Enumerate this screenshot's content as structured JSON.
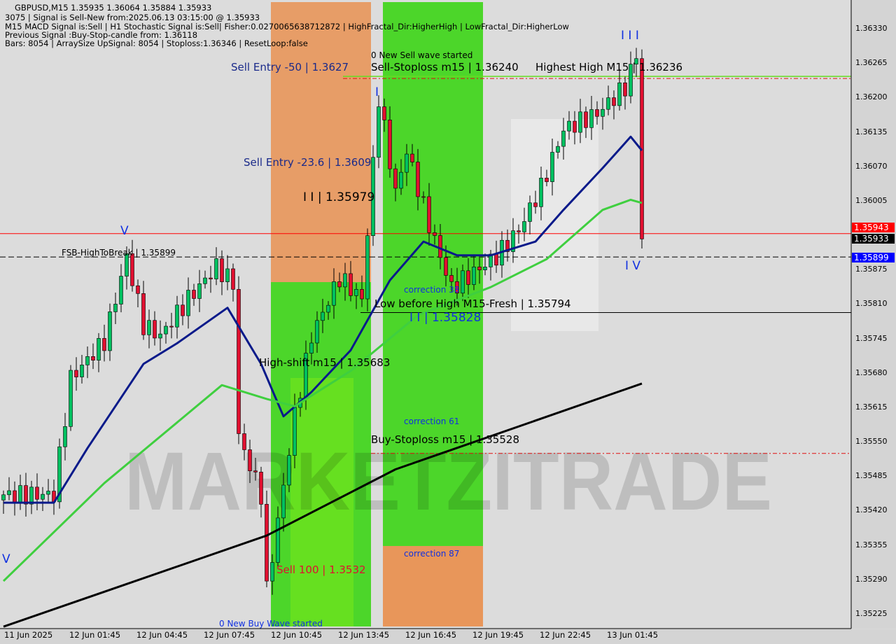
{
  "header": {
    "symbol_line": "GBPUSD,M15  1.35935 1.36064 1.35884 1.35933",
    "signal_line": "3075 | Signal is Sell-New from:2025.06.13 03:15:00 @ 1.35933",
    "indicators_line": "M15 MACD Signal is:Sell | H1 Stochastic Signal is:Sell| Fisher:0.0270065638712872 | HighFractal_Dir:HigherHigh | LowFractal_Dir:HigherLow",
    "previous_line": "Previous Signal :Buy-Stop-candle from: 1.36118",
    "bars_line": "Bars: 8054 | ArraySize UpSignal: 8054 | Stoploss:1.36346 | ResetLoop:false"
  },
  "annotations": {
    "new_sell_wave": "0 New Sell wave started",
    "sell_entry_50": "Sell Entry -50 | 1.3627",
    "sell_stoploss": "Sell-Stoploss m15 | 1.36240",
    "highest_high": "Highest High M15 | 1.36236",
    "sell_entry_23": "Sell Entry -23.6 | 1.3609",
    "ii_high": "I I | 1.35979",
    "fsb": "FSB-HighToBreak | 1.35899",
    "wave_v_top": "V",
    "wave_v_left": "V",
    "wave_iv": "I V",
    "wave_iii": "I I I",
    "wave_i": "I",
    "correction_38": "correction 38",
    "low_before_high": "Low before High   M15-Fresh | 1.35794",
    "ii_low": "I I | 1.35828",
    "high_shift": "High-shift m15 | 1.35683",
    "correction_61": "correction 61",
    "buy_stoploss": "Buy-Stoploss m15 | 1.35528",
    "correction_87": "correction 87",
    "sell_100": "Sell 100 | 1.3532",
    "new_buy_wave": "0 New Buy Wave started",
    "watermark": "MARKETZITRADE"
  },
  "price_labels": {
    "red": "1.35943",
    "current": "1.35933",
    "fsb": "1.35899"
  },
  "colors": {
    "bull": "#00c060",
    "bear": "#e01030",
    "zone_orange": "#e8965a",
    "zone_green": "#4cd62a",
    "ma_fast": "#0a1a8a",
    "ma_mid": "#3fcf3f",
    "ma_slow": "#000000"
  },
  "chart_data": {
    "type": "candlestick",
    "title": "GBPUSD,M15",
    "ylim": [
      1.3519,
      1.364
    ],
    "y_ticks": [
      "1.36330",
      "1.36265",
      "1.36200",
      "1.36135",
      "1.36070",
      "1.36005",
      "1.35875",
      "1.35810",
      "1.35745",
      "1.35680",
      "1.35615",
      "1.35550",
      "1.35485",
      "1.35420",
      "1.35355",
      "1.35290",
      "1.35225"
    ],
    "x_ticks": [
      "11 Jun 2025",
      "12 Jun 01:45",
      "12 Jun 04:45",
      "12 Jun 07:45",
      "12 Jun 10:45",
      "12 Jun 13:45",
      "12 Jun 16:45",
      "12 Jun 19:45",
      "12 Jun 22:45",
      "13 Jun 01:45"
    ],
    "bar_minutes": 15,
    "close_path": [
      [
        "2025-06-11 22:45",
        1.3545
      ],
      [
        "2025-06-12 01:00",
        1.3545
      ],
      [
        "2025-06-12 01:45",
        1.3567
      ],
      [
        "2025-06-12 03:15",
        1.3574
      ],
      [
        "2025-06-12 04:15",
        1.359
      ],
      [
        "2025-06-12 05:00",
        1.3577
      ],
      [
        "2025-06-12 05:45",
        1.3575
      ],
      [
        "2025-06-12 07:00",
        1.3582
      ],
      [
        "2025-06-12 08:15",
        1.3588
      ],
      [
        "2025-06-12 09:00",
        1.3585
      ],
      [
        "2025-06-12 09:15",
        1.3556
      ],
      [
        "2025-06-12 10:15",
        1.3545
      ],
      [
        "2025-06-12 10:30",
        1.3527
      ],
      [
        "2025-06-12 11:00",
        1.354
      ],
      [
        "2025-06-12 11:45",
        1.356
      ],
      [
        "2025-06-12 12:30",
        1.3575
      ],
      [
        "2025-06-12 13:45",
        1.3586
      ],
      [
        "2025-06-12 14:45",
        1.3582
      ],
      [
        "2025-06-12 15:30",
        1.362
      ],
      [
        "2025-06-12 16:15",
        1.3602
      ],
      [
        "2025-06-12 16:45",
        1.361
      ],
      [
        "2025-06-12 17:45",
        1.3596
      ],
      [
        "2025-06-12 18:45",
        1.3584
      ],
      [
        "2025-06-12 20:45",
        1.359
      ],
      [
        "2025-06-12 21:45",
        1.3595
      ],
      [
        "2025-06-12 22:45",
        1.3603
      ],
      [
        "2025-06-12 23:45",
        1.3614
      ],
      [
        "2025-06-13 01:15",
        1.3617
      ],
      [
        "2025-06-13 02:30",
        1.3622
      ],
      [
        "2025-06-13 03:00",
        1.3628
      ],
      [
        "2025-06-13 03:15",
        1.35933
      ]
    ],
    "series": [
      {
        "color": "#0a1a8a",
        "values": [
          [
            "2025-06-11 22:45",
            1.35435
          ],
          [
            "2025-06-12 01:00",
            1.35435
          ],
          [
            "2025-06-12 02:30",
            1.35538
          ],
          [
            "2025-06-12 05:00",
            1.35697
          ],
          [
            "2025-06-12 06:30",
            1.35736
          ],
          [
            "2025-06-12 08:45",
            1.35803
          ],
          [
            "2025-06-12 10:15",
            1.35697
          ],
          [
            "2025-06-12 11:15",
            1.35598
          ],
          [
            "2025-06-12 12:30",
            1.35644
          ],
          [
            "2025-06-12 14:15",
            1.35723
          ],
          [
            "2025-06-12 16:00",
            1.35855
          ],
          [
            "2025-06-12 17:30",
            1.35928
          ],
          [
            "2025-06-12 19:00",
            1.35902
          ],
          [
            "2025-06-12 20:30",
            1.35902
          ],
          [
            "2025-06-12 22:30",
            1.35928
          ],
          [
            "2025-06-12 23:45",
            1.35988
          ],
          [
            "2025-06-13 01:30",
            1.36067
          ],
          [
            "2025-06-13 02:45",
            1.36126
          ],
          [
            "2025-06-13 03:15",
            1.361
          ]
        ]
      },
      {
        "color": "#3fcf3f",
        "values": [
          [
            "2025-06-11 22:45",
            1.35287
          ],
          [
            "2025-06-12 03:15",
            1.35472
          ],
          [
            "2025-06-12 08:30",
            1.35657
          ],
          [
            "2025-06-12 10:30",
            1.35631
          ],
          [
            "2025-06-12 11:45",
            1.35617
          ],
          [
            "2025-06-12 14:15",
            1.35684
          ],
          [
            "2025-06-12 17:15",
            1.35789
          ],
          [
            "2025-06-12 20:30",
            1.35842
          ],
          [
            "2025-06-12 23:00",
            1.35895
          ],
          [
            "2025-06-13 01:30",
            1.35988
          ],
          [
            "2025-06-13 02:45",
            1.36007
          ],
          [
            "2025-06-13 03:15",
            1.36001
          ]
        ]
      },
      {
        "color": "#000000",
        "values": [
          [
            "2025-06-11 22:45",
            1.35201
          ],
          [
            "2025-06-12 10:30",
            1.35373
          ],
          [
            "2025-06-12 16:15",
            1.35498
          ],
          [
            "2025-06-13 03:15",
            1.3566
          ]
        ]
      }
    ],
    "levels": [
      {
        "price": 1.35943,
        "style": "solid",
        "color": "#ff0000"
      },
      {
        "price": 1.35899,
        "style": "dashed",
        "color": "#000000"
      },
      {
        "price": 1.36236,
        "style": "dashdot",
        "color": "#e01010"
      },
      {
        "price": 1.3624,
        "style": "solid",
        "color": "#66dd22"
      },
      {
        "price": 1.35794,
        "style": "solid",
        "color": "#000000"
      },
      {
        "price": 1.35528,
        "style": "dashdot",
        "color": "#e01010"
      }
    ]
  }
}
